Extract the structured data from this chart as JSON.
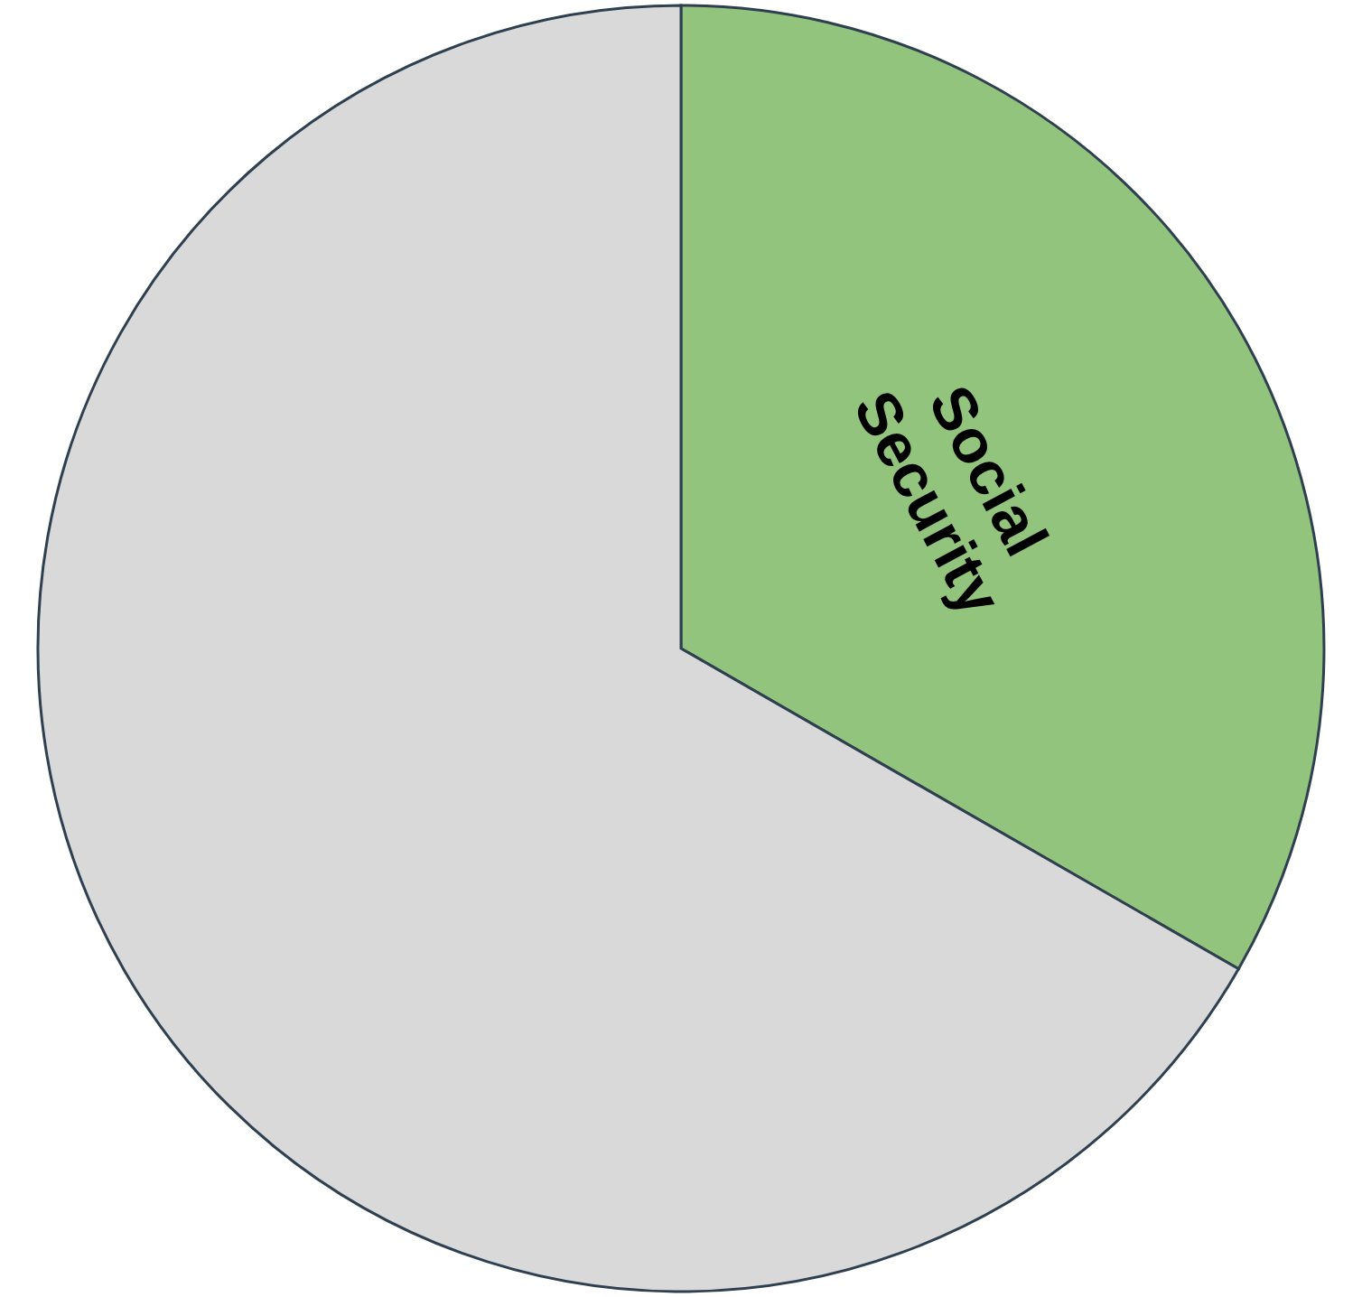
{
  "chart_data": {
    "type": "pie",
    "categories": [
      "Social Security",
      null
    ],
    "values": [
      33.3,
      66.7
    ],
    "colors": [
      "#93c47d",
      "#d9d9d9"
    ]
  }
}
